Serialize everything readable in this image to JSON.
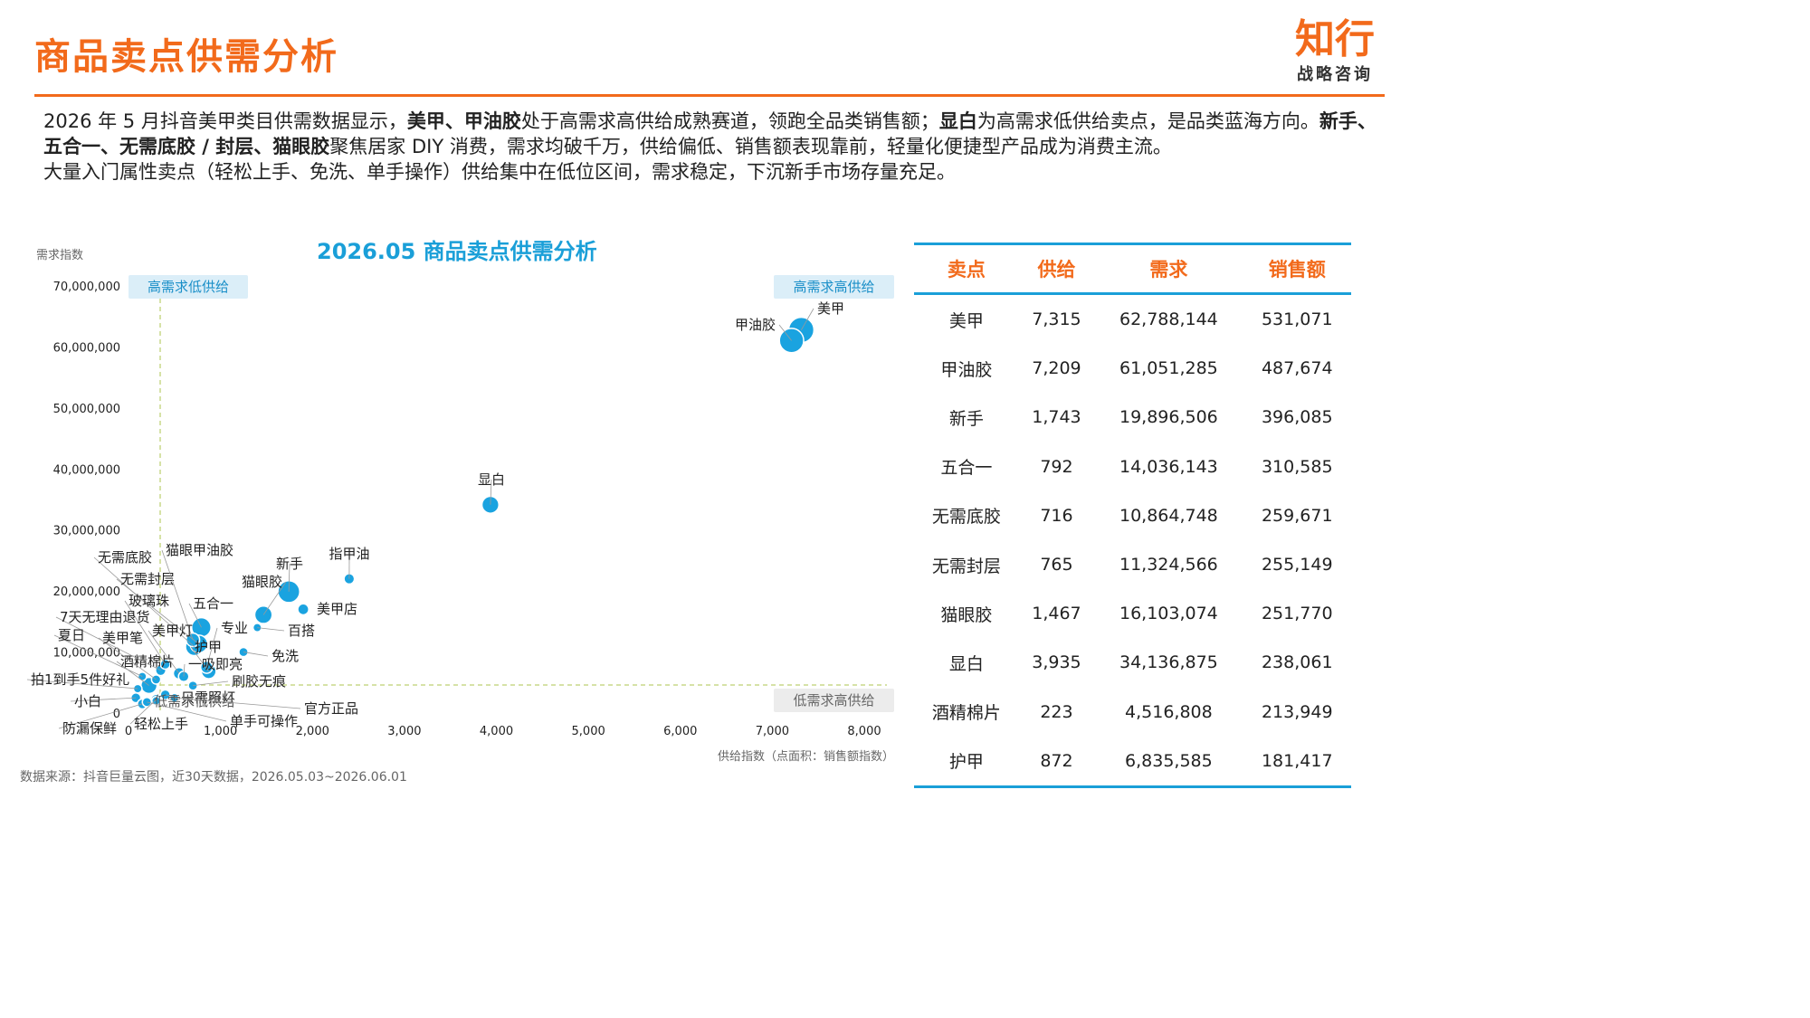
{
  "header": {
    "title": "商品卖点供需分析",
    "logo_main": "知行",
    "logo_sub": "战略咨询"
  },
  "summary": {
    "p1": "2026 年 5 月抖音美甲类目供需数据显示，",
    "b1": "美甲、甲油胶",
    "p2": "处于高需求高供给成熟赛道，领跑全品类销售额；",
    "b2": "显白",
    "p3": "为高需求低供给卖点，是品类蓝海方向。",
    "b3": "新手、五合一、无需底胶 / 封层、猫眼胶",
    "p4": "聚焦居家 DIY 消费，需求均破千万，供给偏低、销售额表现靠前，轻量化便捷型产品成为消费主流。",
    "p5": "大量入门属性卖点（轻松上手、免洗、单手操作）供给集中在低位区间，需求稳定，下沉新手市场存量充足。"
  },
  "colors": {
    "accent": "#f26a1b",
    "bubble": "#1aa3e0",
    "quadrant_box": "#dbeef8",
    "gray_box": "#ececec"
  },
  "chart_data": {
    "type": "scatter",
    "title": "2026.05 商品卖点供需分析",
    "ylabel": "需求指数",
    "xlabel": "供给指数（点面积：销售额指数）",
    "xlim": [
      0,
      8000
    ],
    "ylim": [
      0,
      70000000
    ],
    "x_ticks": [
      "0",
      "1,000",
      "2,000",
      "3,000",
      "4,000",
      "5,000",
      "6,000",
      "7,000",
      "8,000"
    ],
    "y_ticks": [
      "0",
      "10,000,000",
      "20,000,000",
      "30,000,000",
      "40,000,000",
      "50,000,000",
      "60,000,000",
      "70,000,000"
    ],
    "quadrants": [
      "高需求低供给",
      "高需求高供给",
      "低需求低供给",
      "低需求高供给"
    ],
    "points": [
      {
        "label": "美甲",
        "x": 7315,
        "y": 62788144,
        "size": 531071
      },
      {
        "label": "甲油胶",
        "x": 7209,
        "y": 61051285,
        "size": 487674
      },
      {
        "label": "显白",
        "x": 3935,
        "y": 34136875,
        "size": 238061
      },
      {
        "label": "新手",
        "x": 1743,
        "y": 19896506,
        "size": 396085
      },
      {
        "label": "指甲油",
        "x": 2400,
        "y": 22000000,
        "size": 90000
      },
      {
        "label": "美甲店",
        "x": 1900,
        "y": 17000000,
        "size": 100000
      },
      {
        "label": "猫眼胶",
        "x": 1467,
        "y": 16103074,
        "size": 251770
      },
      {
        "label": "百搭",
        "x": 1400,
        "y": 14000000,
        "size": 60000
      },
      {
        "label": "免洗",
        "x": 1250,
        "y": 10000000,
        "size": 70000
      },
      {
        "label": "五合一",
        "x": 792,
        "y": 14036143,
        "size": 310585
      },
      {
        "label": "无需底胶",
        "x": 716,
        "y": 10864748,
        "size": 259671
      },
      {
        "label": "无需封层",
        "x": 765,
        "y": 11324566,
        "size": 255149
      },
      {
        "label": "护甲",
        "x": 872,
        "y": 6835585,
        "size": 181417
      },
      {
        "label": "酒精棉片",
        "x": 223,
        "y": 4516808,
        "size": 213949
      },
      {
        "label": "猫眼甲油胶",
        "x": 700,
        "y": 12000000,
        "size": 150000
      },
      {
        "label": "玻璃珠",
        "x": 400,
        "y": 8000000,
        "size": 80000
      },
      {
        "label": "7天无理由退货",
        "x": 350,
        "y": 7000000,
        "size": 90000
      },
      {
        "label": "夏日",
        "x": 150,
        "y": 6000000,
        "size": 60000
      },
      {
        "label": "美甲笔",
        "x": 300,
        "y": 5500000,
        "size": 70000
      },
      {
        "label": "美甲灯",
        "x": 550,
        "y": 6500000,
        "size": 110000
      },
      {
        "label": "专业",
        "x": 850,
        "y": 7500000,
        "size": 120000
      },
      {
        "label": "一吸即亮",
        "x": 600,
        "y": 6000000,
        "size": 90000
      },
      {
        "label": "拍1到手5件好礼",
        "x": 100,
        "y": 4000000,
        "size": 60000
      },
      {
        "label": "刷胶无痕",
        "x": 700,
        "y": 4500000,
        "size": 70000
      },
      {
        "label": "小白",
        "x": 80,
        "y": 2500000,
        "size": 80000
      },
      {
        "label": "只需照灯",
        "x": 400,
        "y": 3000000,
        "size": 80000
      },
      {
        "label": "低需求低供给",
        "x": 300,
        "y": 2000000,
        "size": 60000
      },
      {
        "label": "官方正品",
        "x": 500,
        "y": 2500000,
        "size": 60000
      },
      {
        "label": "防漏保鲜",
        "x": 150,
        "y": 1500000,
        "size": 80000
      },
      {
        "label": "轻松上手",
        "x": 300,
        "y": 2200000,
        "size": 90000
      },
      {
        "label": "单手可操作",
        "x": 200,
        "y": 1800000,
        "size": 70000
      }
    ],
    "table": {
      "columns": [
        "卖点",
        "供给",
        "需求",
        "销售额"
      ],
      "rows": [
        [
          "美甲",
          "7,315",
          "62,788,144",
          "531,071"
        ],
        [
          "甲油胶",
          "7,209",
          "61,051,285",
          "487,674"
        ],
        [
          "新手",
          "1,743",
          "19,896,506",
          "396,085"
        ],
        [
          "五合一",
          "792",
          "14,036,143",
          "310,585"
        ],
        [
          "无需底胶",
          "716",
          "10,864,748",
          "259,671"
        ],
        [
          "无需封层",
          "765",
          "11,324,566",
          "255,149"
        ],
        [
          "猫眼胶",
          "1,467",
          "16,103,074",
          "251,770"
        ],
        [
          "显白",
          "3,935",
          "34,136,875",
          "238,061"
        ],
        [
          "酒精棉片",
          "223",
          "4,516,808",
          "213,949"
        ],
        [
          "护甲",
          "872",
          "6,835,585",
          "181,417"
        ]
      ]
    }
  },
  "footer": {
    "source": "数据来源：抖音巨量云图，近30天数据，2026.05.03~2026.06.01"
  }
}
